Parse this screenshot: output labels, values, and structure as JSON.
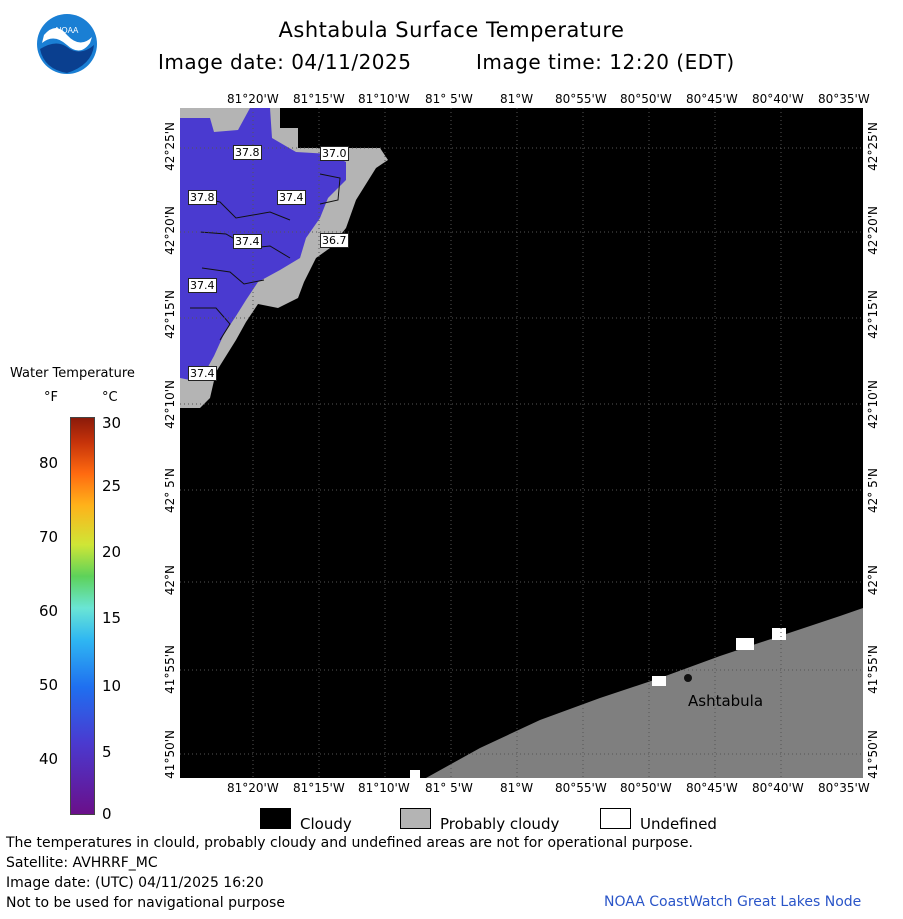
{
  "header": {
    "title": "Ashtabula Surface Temperature",
    "image_date": "Image date: 04/11/2025",
    "image_time": "Image time: 12:20 (EDT)"
  },
  "logo": {
    "text": "NOAA",
    "icon": "noaa-logo-icon",
    "color": "#1a7fd4"
  },
  "map": {
    "lon_labels_top": [
      "81°20'W",
      "81°15'W",
      "81°10'W",
      "81° 5'W",
      "81°W",
      "80°55'W",
      "80°50'W",
      "80°45'W",
      "80°40'W",
      "80°35'W"
    ],
    "lon_labels_bottom": [
      "81°20'W",
      "81°15'W",
      "81°10'W",
      "81° 5'W",
      "81°W",
      "80°55'W",
      "80°50'W",
      "80°45'W",
      "80°40'W",
      "80°35'W"
    ],
    "lat_labels": [
      "42°25'N",
      "42°20'N",
      "42°15'N",
      "42°10'N",
      "42° 5'N",
      "42°N",
      "41°55'N",
      "41°50'N"
    ],
    "city_label": "Ashtabula",
    "temp_points": [
      "37.8",
      "37.0",
      "37.8",
      "37.4",
      "37.4",
      "36.7",
      "37.4",
      "37.4"
    ],
    "colors": {
      "cloud": "#000000",
      "probably_cloudy": "#b4b4b4",
      "land": "#7f7f7f",
      "water": "#4a3ad0"
    }
  },
  "legend": {
    "title": "Water Temperature",
    "unit_f": "°F",
    "unit_c": "°C",
    "f_ticks": [
      "80",
      "70",
      "60",
      "50",
      "40"
    ],
    "c_ticks": [
      "30",
      "25",
      "20",
      "15",
      "10",
      "5",
      "0"
    ]
  },
  "key": {
    "cloudy": "Cloudy",
    "probably_cloudy": "Probably cloudy",
    "undefined": "Undefined"
  },
  "footer": {
    "line1": "The temperatures in clould, probably cloudy and undefined areas are not for operational purpose.",
    "line2": "Satellite: AVHRRF_MC",
    "line3": "Image date: (UTC) 04/11/2025  16:20",
    "line4": "Not to be used for navigational purpose",
    "credit": "NOAA CoastWatch Great Lakes Node"
  }
}
